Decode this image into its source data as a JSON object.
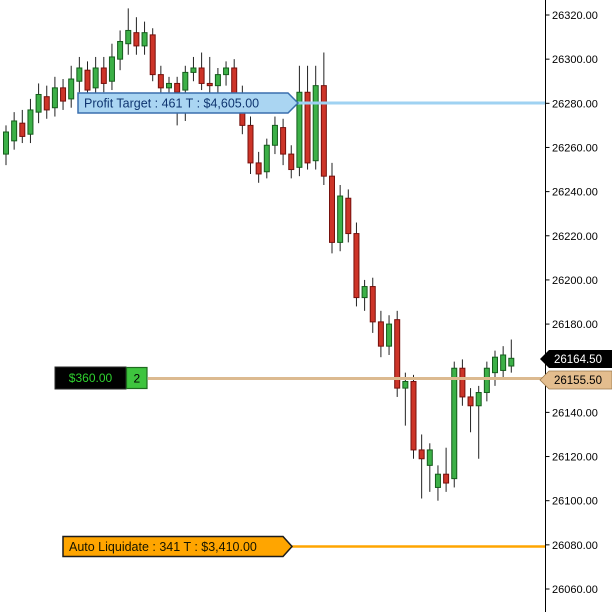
{
  "chart_data": {
    "type": "candlestick",
    "title": "",
    "grid": false,
    "legend_position": "none",
    "price_axis": {
      "side": "right",
      "min": 26055,
      "max": 26330,
      "tick_step": 20,
      "ticks": [
        {
          "price": 26320,
          "label": "26320.00"
        },
        {
          "price": 26300,
          "label": "26300.00"
        },
        {
          "price": 26280,
          "label": "26280.00"
        },
        {
          "price": 26260,
          "label": "26260.00"
        },
        {
          "price": 26240,
          "label": "26240.00"
        },
        {
          "price": 26220,
          "label": "26220.00"
        },
        {
          "price": 26200,
          "label": "26200.00"
        },
        {
          "price": 26180,
          "label": "26180.00"
        },
        {
          "price": 26140,
          "label": "26140.00"
        },
        {
          "price": 26120,
          "label": "26120.00"
        },
        {
          "price": 26100,
          "label": "26100.00"
        },
        {
          "price": 26080,
          "label": "26080.00"
        },
        {
          "price": 26060,
          "label": "26060.00"
        }
      ]
    },
    "candles_ohlc": [
      [
        26257,
        26270,
        26252,
        26267
      ],
      [
        26263,
        26276,
        26259,
        26272
      ],
      [
        26271,
        26277,
        26262,
        26265
      ],
      [
        26266,
        26282,
        26262,
        26277
      ],
      [
        26276,
        26289,
        26271,
        26284
      ],
      [
        26283,
        26288,
        26273,
        26277
      ],
      [
        26278,
        26292,
        26274,
        26287
      ],
      [
        26287,
        26291,
        26277,
        26281
      ],
      [
        26282,
        26297,
        26278,
        26291
      ],
      [
        26290,
        26301,
        26285,
        26296
      ],
      [
        26295,
        26299,
        26281,
        26286
      ],
      [
        26287,
        26301,
        26283,
        26296
      ],
      [
        26296,
        26301,
        26285,
        26289
      ],
      [
        26290,
        26307,
        26286,
        26301
      ],
      [
        26300,
        26313,
        26295,
        26308
      ],
      [
        26307,
        26323,
        26302,
        26313
      ],
      [
        26312,
        26319,
        26302,
        26306
      ],
      [
        26306,
        26317,
        26302,
        26312
      ],
      [
        26311,
        26314,
        26290,
        26293
      ],
      [
        26293,
        26297,
        26283,
        26287
      ],
      [
        26287,
        26292,
        26280,
        26289
      ],
      [
        26289,
        26292,
        26270,
        26285
      ],
      [
        26286,
        26297,
        26272,
        26294
      ],
      [
        26294,
        26301,
        26290,
        26296
      ],
      [
        26296,
        26303,
        26286,
        26289
      ],
      [
        26289,
        26301,
        26284,
        26288
      ],
      [
        26288,
        26296,
        26284,
        26293
      ],
      [
        26293,
        26299,
        26288,
        26296
      ],
      [
        26296,
        26300,
        26282,
        26284
      ],
      [
        26284,
        26288,
        26266,
        26270
      ],
      [
        26270,
        26274,
        26248,
        26253
      ],
      [
        26253,
        26258,
        26244,
        26248
      ],
      [
        26249,
        26264,
        26246,
        26261
      ],
      [
        26261,
        26274,
        26257,
        26270
      ],
      [
        26269,
        26273,
        26252,
        26257
      ],
      [
        26257,
        26261,
        26246,
        26250
      ],
      [
        26251,
        26297,
        26247,
        26285
      ],
      [
        26285,
        26297,
        26250,
        26253
      ],
      [
        26254,
        26297,
        26250,
        26288
      ],
      [
        26288,
        26303,
        26243,
        26247
      ],
      [
        26247,
        26253,
        26212,
        26217
      ],
      [
        26217,
        26243,
        26213,
        26238
      ],
      [
        26237,
        26241,
        26217,
        26221
      ],
      [
        26221,
        26226,
        26188,
        26192
      ],
      [
        26192,
        26200,
        26186,
        26197
      ],
      [
        26197,
        26201,
        26176,
        26181
      ],
      [
        26181,
        26186,
        26165,
        26170
      ],
      [
        26170,
        26184,
        26166,
        26180
      ],
      [
        26182,
        26186,
        26147,
        26151
      ],
      [
        26151,
        26158,
        26134,
        26154
      ],
      [
        26154,
        26157,
        26119,
        26123
      ],
      [
        26123,
        26130,
        26101,
        26119
      ],
      [
        26116,
        26126,
        26104,
        26123
      ],
      [
        26106,
        26116,
        26100,
        26112
      ],
      [
        26112,
        26124,
        26104,
        26108
      ],
      [
        26110,
        26163,
        26106,
        26160
      ],
      [
        26160,
        26164,
        26143,
        26147
      ],
      [
        26147,
        26151,
        26131,
        26143
      ],
      [
        26143,
        26152,
        26119,
        26149
      ],
      [
        26149,
        26163,
        26145,
        26160
      ],
      [
        26158,
        26168,
        26152,
        26165
      ],
      [
        26159,
        26170,
        26155,
        26166
      ],
      [
        26161,
        26173,
        26158,
        26164.5
      ]
    ],
    "colors": {
      "up_fill": "#3cb047",
      "up_stroke": "#155c1c",
      "down_fill": "#cd3428",
      "down_stroke": "#76100c",
      "wick": "#222222",
      "profit_target_line": "#9fd2f2",
      "profit_target_fill": "#aad5f2",
      "profit_target_border": "#3a6fae",
      "profit_target_text": "#0f3570",
      "position_line": "#dcba90",
      "auto_liquidate": "#ffa500",
      "last_price_bg": "#000000",
      "entry_price_bg": "#e3bd8e"
    },
    "overlays": {
      "profit_target": {
        "label": "Profit Target :  461 T :  $4,605.00",
        "price": 26280
      },
      "auto_liquidate": {
        "label": "Auto Liquidate :  341 T :  $3,410.00",
        "price": 26080
      },
      "position_entry": {
        "price": 26155.5
      }
    },
    "markers": {
      "last": {
        "label": "26164.50",
        "price": 26164.5
      },
      "entry": {
        "label": "26155.50",
        "price": 26155.5
      }
    },
    "position": {
      "pnl": "$360.00",
      "quantity": "2"
    }
  }
}
